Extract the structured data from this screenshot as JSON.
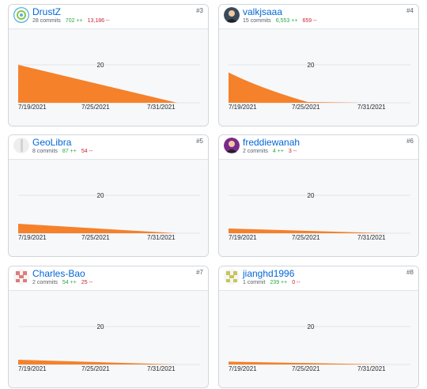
{
  "contributors": [
    {
      "username": "DrustZ",
      "rank": "#3",
      "commits": "28 commits",
      "additions": "702 ++",
      "deletions": "13,186 --",
      "avatar_icon": "aperture-avatar-icon",
      "avatar_color": "#4fb3d9",
      "chart_data": {
        "type": "area",
        "x": [
          "7/19/2021",
          "7/25/2021",
          "7/31/2021"
        ],
        "y_tick": 20,
        "area_peak": 20,
        "area_shape": "linear-decay"
      }
    },
    {
      "username": "valkjsaaa",
      "rank": "#4",
      "commits": "15 commits",
      "additions": "6,553 ++",
      "deletions": "659 --",
      "avatar_icon": "photo-avatar-icon",
      "avatar_color": "#3a4a5a",
      "chart_data": {
        "type": "area",
        "x": [
          "7/19/2021",
          "7/25/2021",
          "7/31/2021"
        ],
        "y_tick": 20,
        "area_peak": 16,
        "area_shape": "curved-decay"
      }
    },
    {
      "username": "GeoLibra",
      "rank": "#5",
      "commits": "8 commits",
      "additions": "87 ++",
      "deletions": "54 --",
      "avatar_icon": "grey-avatar-icon",
      "avatar_color": "#cfd3d6",
      "chart_data": {
        "type": "area",
        "x": [
          "7/19/2021",
          "7/25/2021",
          "7/31/2021"
        ],
        "y_tick": 20,
        "area_peak": 5,
        "area_shape": "linear-decay"
      }
    },
    {
      "username": "freddiewanah",
      "rank": "#6",
      "commits": "2 commits",
      "additions": "4 ++",
      "deletions": "3 --",
      "avatar_icon": "photo-avatar-icon",
      "avatar_color": "#7a2a8a",
      "chart_data": {
        "type": "area",
        "x": [
          "7/19/2021",
          "7/25/2021",
          "7/31/2021"
        ],
        "y_tick": 20,
        "area_peak": 2.5,
        "area_shape": "linear-decay"
      }
    },
    {
      "username": "Charles-Bao",
      "rank": "#7",
      "commits": "2 commits",
      "additions": "54 ++",
      "deletions": "25 --",
      "avatar_icon": "identicon-avatar-icon",
      "avatar_color": "#e07b7b",
      "chart_data": {
        "type": "area",
        "x": [
          "7/19/2021",
          "7/25/2021",
          "7/31/2021"
        ],
        "y_tick": 20,
        "area_peak": 2.5,
        "area_shape": "linear-decay"
      }
    },
    {
      "username": "jianghd1996",
      "rank": "#8",
      "commits": "1 commit",
      "additions": "239 ++",
      "deletions": "0 --",
      "avatar_icon": "identicon-avatar-icon",
      "avatar_color": "#c6c65a",
      "chart_data": {
        "type": "area",
        "x": [
          "7/19/2021",
          "7/25/2021",
          "7/31/2021"
        ],
        "y_tick": 20,
        "area_peak": 1.5,
        "area_shape": "linear-decay"
      }
    }
  ]
}
